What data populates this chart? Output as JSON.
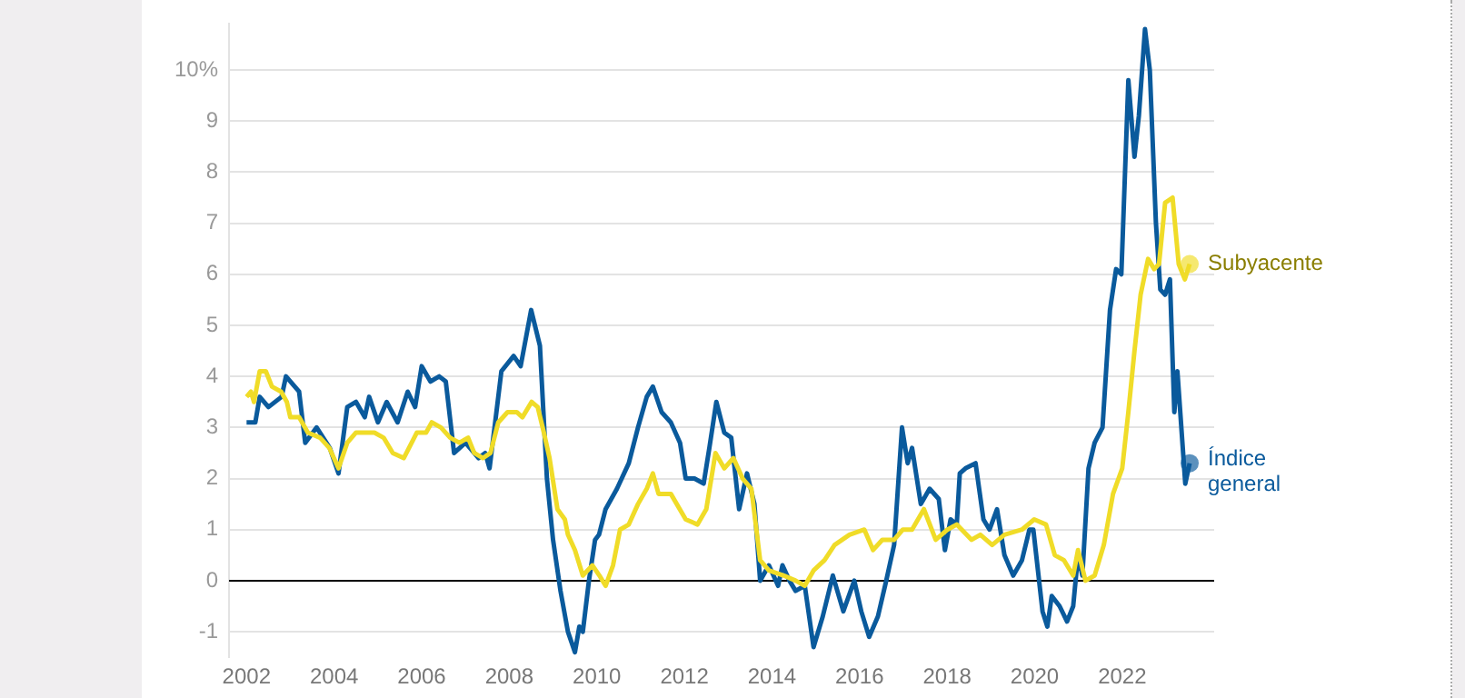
{
  "chart_data": {
    "type": "line",
    "xlim": [
      2001.6,
      2024.1
    ],
    "xticks": [
      2002,
      2004,
      2006,
      2008,
      2010,
      2012,
      2014,
      2016,
      2018,
      2020,
      2022
    ],
    "ylim": [
      -1.5,
      10.9
    ],
    "yticks": [
      -1,
      0,
      1,
      2,
      3,
      4,
      5,
      6,
      7,
      8,
      9,
      {
        "value": 10,
        "label": "10%"
      }
    ],
    "grid": "y",
    "legend": false,
    "ref_lines": [
      {
        "axis": "y",
        "value": 0,
        "color": "#000000"
      }
    ],
    "series": [
      {
        "name": "Subyacente",
        "color": "#f0dc28",
        "x": [
          2002.0,
          2002.1,
          2002.17,
          2002.3,
          2002.44,
          2002.58,
          2002.79,
          2002.92,
          2003.0,
          2003.2,
          2003.4,
          2003.68,
          2003.89,
          2004.1,
          2004.3,
          2004.5,
          2004.92,
          2005.13,
          2005.34,
          2005.59,
          2005.89,
          2006.1,
          2006.23,
          2006.44,
          2006.65,
          2006.86,
          2007.06,
          2007.2,
          2007.4,
          2007.57,
          2007.75,
          2007.96,
          2008.17,
          2008.3,
          2008.51,
          2008.65,
          2008.79,
          2008.92,
          2009.1,
          2009.27,
          2009.34,
          2009.5,
          2009.68,
          2009.9,
          2010.06,
          2010.2,
          2010.37,
          2010.53,
          2010.73,
          2010.94,
          2011.14,
          2011.28,
          2011.41,
          2011.69,
          2012.03,
          2012.3,
          2012.5,
          2012.71,
          2012.91,
          2013.12,
          2013.33,
          2013.53,
          2013.73,
          2013.93,
          2014.27,
          2014.54,
          2014.75,
          2014.95,
          2015.2,
          2015.43,
          2015.77,
          2016.11,
          2016.31,
          2016.52,
          2016.79,
          2016.99,
          2017.2,
          2017.47,
          2017.74,
          2018.01,
          2018.22,
          2018.56,
          2018.76,
          2019.03,
          2019.31,
          2019.71,
          2019.99,
          2020.26,
          2020.46,
          2020.67,
          2020.88,
          2020.99,
          2021.16,
          2021.37,
          2021.58,
          2021.79,
          2022.0,
          2022.14,
          2022.28,
          2022.42,
          2022.59,
          2022.73,
          2022.84,
          2022.98,
          2023.15,
          2023.29,
          2023.43,
          2023.54
        ],
        "values": [
          3.6,
          3.7,
          3.5,
          4.1,
          4.1,
          3.8,
          3.7,
          3.5,
          3.2,
          3.2,
          2.9,
          2.8,
          2.6,
          2.2,
          2.7,
          2.9,
          2.9,
          2.8,
          2.5,
          2.4,
          2.9,
          2.9,
          3.1,
          3.0,
          2.8,
          2.7,
          2.8,
          2.5,
          2.4,
          2.5,
          3.1,
          3.3,
          3.3,
          3.2,
          3.5,
          3.4,
          2.9,
          2.4,
          1.4,
          1.2,
          0.9,
          0.6,
          0.1,
          0.3,
          0.1,
          -0.1,
          0.3,
          1.0,
          1.1,
          1.5,
          1.8,
          2.1,
          1.7,
          1.7,
          1.2,
          1.1,
          1.4,
          2.5,
          2.2,
          2.4,
          2.0,
          1.8,
          0.4,
          0.2,
          0.1,
          0.0,
          -0.1,
          0.2,
          0.4,
          0.7,
          0.9,
          1.0,
          0.6,
          0.8,
          0.8,
          1.0,
          1.0,
          1.4,
          0.8,
          1.0,
          1.1,
          0.8,
          0.9,
          0.7,
          0.9,
          1.0,
          1.2,
          1.1,
          0.5,
          0.4,
          0.1,
          0.6,
          0.0,
          0.1,
          0.7,
          1.7,
          2.2,
          3.3,
          4.5,
          5.6,
          6.3,
          6.1,
          6.2,
          7.4,
          7.5,
          6.2,
          5.9,
          6.2
        ]
      },
      {
        "name": "Índice general",
        "color": "#0a5a9c",
        "x": [
          2002.0,
          2002.2,
          2002.3,
          2002.5,
          2002.8,
          2002.9,
          2003.2,
          2003.34,
          2003.6,
          2003.9,
          2004.1,
          2004.3,
          2004.5,
          2004.7,
          2004.8,
          2005.0,
          2005.2,
          2005.45,
          2005.68,
          2005.85,
          2006.0,
          2006.2,
          2006.4,
          2006.55,
          2006.74,
          2007.0,
          2007.3,
          2007.45,
          2007.55,
          2007.82,
          2008.1,
          2008.26,
          2008.5,
          2008.7,
          2008.86,
          2009.0,
          2009.17,
          2009.34,
          2009.5,
          2009.6,
          2009.68,
          2009.82,
          2009.96,
          2010.05,
          2010.2,
          2010.46,
          2010.73,
          2010.94,
          2011.14,
          2011.28,
          2011.48,
          2011.69,
          2011.9,
          2012.03,
          2012.23,
          2012.44,
          2012.57,
          2012.73,
          2012.91,
          2013.07,
          2013.25,
          2013.43,
          2013.6,
          2013.73,
          2013.93,
          2014.14,
          2014.24,
          2014.4,
          2014.54,
          2014.75,
          2014.95,
          2015.16,
          2015.39,
          2015.63,
          2015.88,
          2016.04,
          2016.22,
          2016.42,
          2016.61,
          2016.79,
          2016.97,
          2017.1,
          2017.2,
          2017.4,
          2017.6,
          2017.81,
          2017.95,
          2018.08,
          2018.22,
          2018.29,
          2018.42,
          2018.65,
          2018.83,
          2018.97,
          2019.14,
          2019.31,
          2019.51,
          2019.71,
          2019.88,
          2019.97,
          2020.18,
          2020.29,
          2020.39,
          2020.57,
          2020.74,
          2020.88,
          2020.99,
          2021.09,
          2021.23,
          2021.37,
          2021.55,
          2021.72,
          2021.86,
          2021.98,
          2022.14,
          2022.28,
          2022.38,
          2022.52,
          2022.63,
          2022.77,
          2022.87,
          2022.98,
          2023.09,
          2023.19,
          2023.26,
          2023.44,
          2023.54
        ],
        "values": [
          3.1,
          3.1,
          3.6,
          3.4,
          3.6,
          4.0,
          3.7,
          2.7,
          3.0,
          2.6,
          2.1,
          3.4,
          3.5,
          3.2,
          3.6,
          3.1,
          3.5,
          3.1,
          3.7,
          3.4,
          4.2,
          3.9,
          4.0,
          3.9,
          2.5,
          2.7,
          2.4,
          2.5,
          2.2,
          4.1,
          4.4,
          4.2,
          5.3,
          4.6,
          2.0,
          0.8,
          -0.2,
          -1.0,
          -1.4,
          -0.9,
          -1.0,
          0.0,
          0.8,
          0.9,
          1.4,
          1.8,
          2.3,
          3.0,
          3.6,
          3.8,
          3.3,
          3.1,
          2.7,
          2.0,
          2.0,
          1.9,
          2.6,
          3.5,
          2.9,
          2.8,
          1.4,
          2.1,
          1.5,
          0.0,
          0.3,
          -0.1,
          0.3,
          0.0,
          -0.2,
          -0.1,
          -1.3,
          -0.7,
          0.1,
          -0.6,
          0.0,
          -0.6,
          -1.1,
          -0.7,
          0.0,
          0.7,
          3.0,
          2.3,
          2.6,
          1.5,
          1.8,
          1.6,
          0.6,
          1.2,
          1.1,
          2.1,
          2.2,
          2.3,
          1.2,
          1.0,
          1.4,
          0.5,
          0.1,
          0.4,
          1.0,
          1.0,
          -0.6,
          -0.9,
          -0.3,
          -0.5,
          -0.8,
          -0.5,
          0.5,
          0.1,
          2.2,
          2.7,
          3.0,
          5.3,
          6.1,
          6.0,
          9.8,
          8.3,
          9.1,
          10.8,
          10.0,
          7.0,
          5.7,
          5.6,
          5.9,
          3.3,
          4.1,
          1.9,
          2.3
        ]
      }
    ]
  }
}
